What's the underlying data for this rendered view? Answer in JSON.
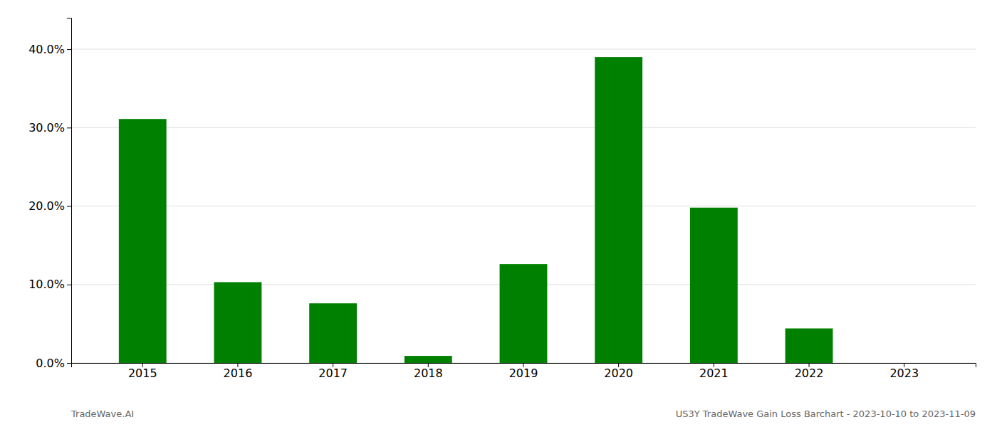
{
  "chart_data": {
    "type": "bar",
    "categories": [
      "2015",
      "2016",
      "2017",
      "2018",
      "2019",
      "2020",
      "2021",
      "2022",
      "2023"
    ],
    "values": [
      0.311,
      0.103,
      0.076,
      0.009,
      0.126,
      0.39,
      0.198,
      0.044,
      0.0
    ],
    "color": "#008000",
    "ylim": [
      0,
      0.44
    ],
    "yticks": [
      {
        "value": 0.0,
        "label": "0.0%"
      },
      {
        "value": 0.1,
        "label": "10.0%"
      },
      {
        "value": 0.2,
        "label": "20.0%"
      },
      {
        "value": 0.3,
        "label": "30.0%"
      },
      {
        "value": 0.4,
        "label": "40.0%"
      }
    ],
    "grid": true,
    "annotations": [
      "TradeWave.AI",
      "US3Y TradeWave Gain Loss Barchart - 2023-10-10 to 2023-11-09"
    ]
  }
}
